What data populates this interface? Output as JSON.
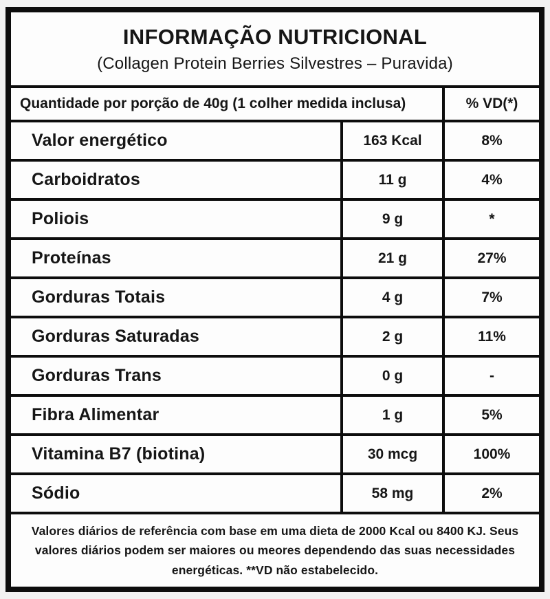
{
  "header": {
    "title": "INFORMAÇÃO NUTRICIONAL",
    "subtitle": "(Collagen Protein Berries Silvestres – Puravida)"
  },
  "table": {
    "header": {
      "quantity_label": "Quantidade por porção de 40g (1 colher medida inclusa)",
      "vd_label": "% VD(*)"
    },
    "rows": [
      {
        "name": "Valor energético",
        "amount": "163 Kcal",
        "vd": "8%"
      },
      {
        "name": "Carboidratos",
        "amount": "11 g",
        "vd": "4%"
      },
      {
        "name": "Poliois",
        "amount": "9 g",
        "vd": "*"
      },
      {
        "name": "Proteínas",
        "amount": "21 g",
        "vd": "27%"
      },
      {
        "name": "Gorduras Totais",
        "amount": "4 g",
        "vd": "7%"
      },
      {
        "name": "Gorduras Saturadas",
        "amount": "2 g",
        "vd": "11%"
      },
      {
        "name": "Gorduras Trans",
        "amount": "0 g",
        "vd": "-"
      },
      {
        "name": "Fibra Alimentar",
        "amount": "1 g",
        "vd": "5%"
      },
      {
        "name": "Vitamina B7 (biotina)",
        "amount": "30 mcg",
        "vd": "100%"
      },
      {
        "name": "Sódio",
        "amount": "58 mg",
        "vd": "2%"
      }
    ]
  },
  "footer": {
    "note": "Valores diários de referência com base em uma dieta de 2000 Kcal ou 8400 KJ. Seus valores diários podem ser maiores ou meores dependendo das suas necessidades energéticas. **VD não estabelecido."
  },
  "colors": {
    "border": "#0d0d0d",
    "background": "#fdfdfd",
    "text": "#161616"
  }
}
